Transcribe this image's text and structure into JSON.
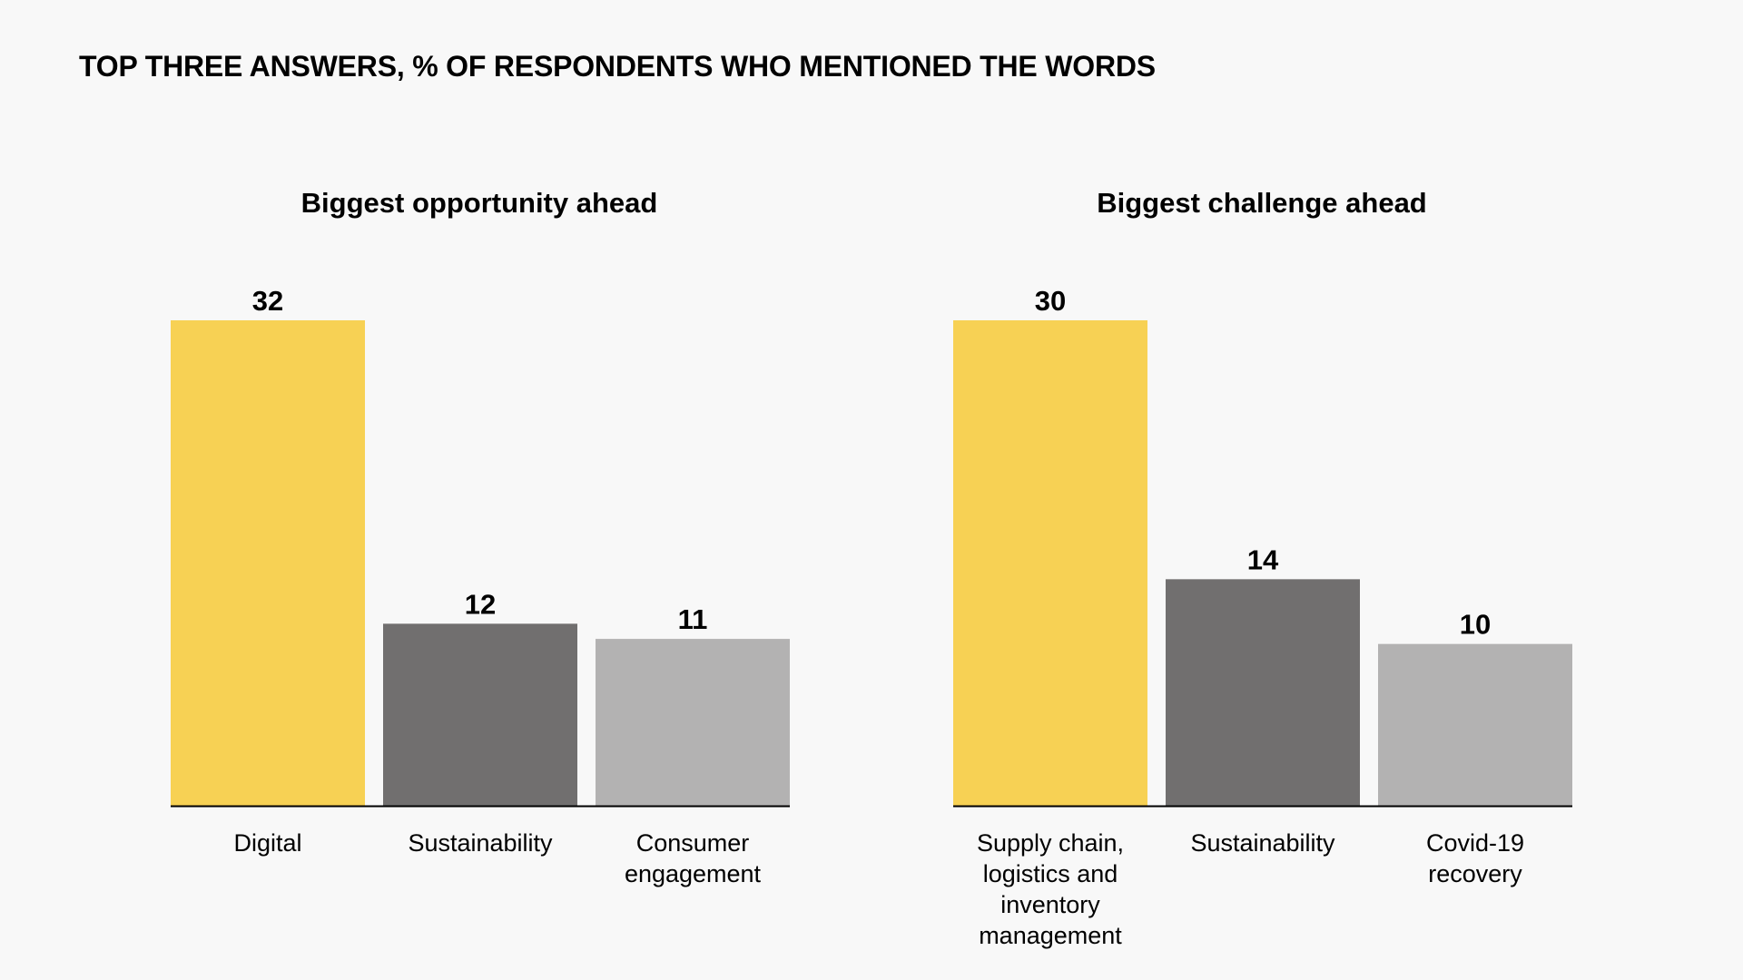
{
  "title": "TOP THREE ANSWERS, % OF RESPONDENTS WHO MENTIONED THE WORDS",
  "colors": {
    "background": "#f8f8f8",
    "primary": "#f7d154",
    "secondary": "#716f6f",
    "tertiary": "#b3b2b2",
    "text": "#000000",
    "axis": "#000000"
  },
  "chart_data": [
    {
      "type": "bar",
      "title": "Biggest opportunity ahead",
      "categories": [
        [
          "Digital"
        ],
        [
          "Sustainability"
        ],
        [
          "Consumer",
          "engagement"
        ]
      ],
      "values": [
        32,
        12,
        11
      ],
      "bar_colors": [
        "#f7d154",
        "#716f6f",
        "#b3b2b2"
      ],
      "xlabel": "",
      "ylabel": "",
      "ylim": [
        0,
        32
      ],
      "grid": false,
      "legend": "none"
    },
    {
      "type": "bar",
      "title": "Biggest challenge ahead",
      "categories": [
        [
          "Supply chain,",
          "logistics and",
          "inventory",
          "management"
        ],
        [
          "Sustainability"
        ],
        [
          "Covid-19",
          "recovery"
        ]
      ],
      "values": [
        30,
        14,
        10
      ],
      "bar_colors": [
        "#f7d154",
        "#716f6f",
        "#b3b2b2"
      ],
      "xlabel": "",
      "ylabel": "",
      "ylim": [
        0,
        30
      ],
      "grid": false,
      "legend": "none"
    }
  ]
}
